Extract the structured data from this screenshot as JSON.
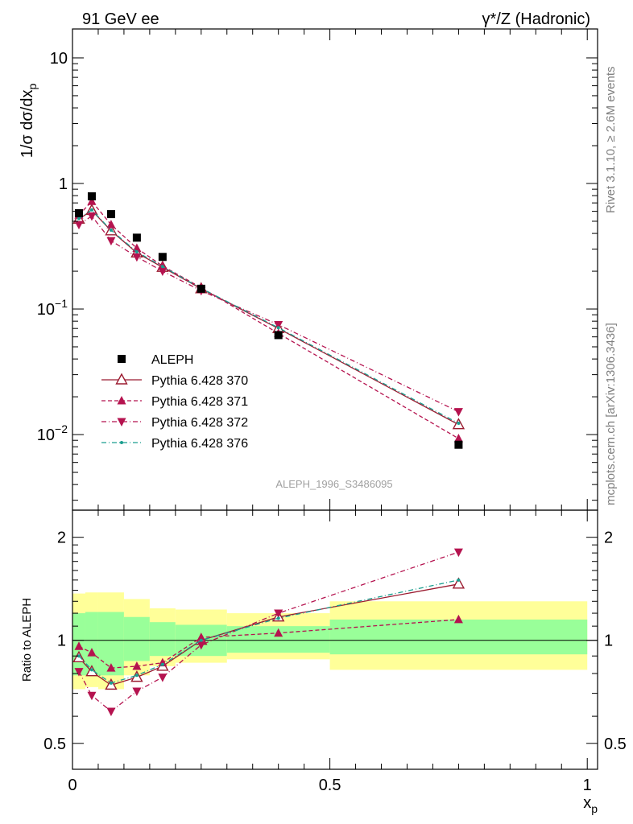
{
  "header": {
    "left_label": "91 GeV ee",
    "right_label": "γ*/Z (Hadronic)"
  },
  "side_labels": {
    "rivet": "Rivet 3.1.10, ≥ 2.6M events",
    "mcplots": "mcplots.cern.ch [arXiv:1306.3436]"
  },
  "watermark": "ALEPH_1996_S3486095",
  "chart_data": [
    {
      "type": "line",
      "panel": "main",
      "ylabel": "1/σ dσ/dx_p",
      "yscale": "log",
      "ylim": [
        0.0025,
        17
      ],
      "xlim": [
        0,
        1.02
      ],
      "yticks": [
        {
          "value": 10,
          "label": "10"
        },
        {
          "value": 1,
          "label": "1"
        },
        {
          "value": 0.1,
          "label": "10^-1"
        },
        {
          "value": 0.01,
          "label": "10^-2"
        }
      ],
      "legend_position": "middle-left",
      "series": [
        {
          "name": "ALEPH",
          "color": "#000000",
          "marker": "square",
          "line": "none",
          "x": [
            0.0125,
            0.0375,
            0.075,
            0.125,
            0.175,
            0.25,
            0.4,
            0.75
          ],
          "y": [
            0.58,
            0.79,
            0.57,
            0.37,
            0.26,
            0.145,
            0.062,
            0.0083
          ]
        },
        {
          "name": "Pythia 6.428 370",
          "color": "#9b1b30",
          "marker": "triangle-up-open",
          "line": "solid",
          "x": [
            0.0125,
            0.0375,
            0.075,
            0.125,
            0.175,
            0.25,
            0.4,
            0.75
          ],
          "y": [
            0.52,
            0.61,
            0.42,
            0.28,
            0.215,
            0.145,
            0.07,
            0.012
          ]
        },
        {
          "name": "Pythia 6.428 371",
          "color": "#b5134f",
          "marker": "triangle-up-filled",
          "line": "dashed",
          "x": [
            0.0125,
            0.0375,
            0.075,
            0.125,
            0.175,
            0.25,
            0.4,
            0.75
          ],
          "y": [
            0.56,
            0.72,
            0.47,
            0.305,
            0.22,
            0.148,
            0.064,
            0.0093
          ]
        },
        {
          "name": "Pythia 6.428 372",
          "color": "#b5134f",
          "marker": "triangle-down-filled",
          "line": "dashdot",
          "x": [
            0.0125,
            0.0375,
            0.075,
            0.125,
            0.175,
            0.25,
            0.4,
            0.75
          ],
          "y": [
            0.47,
            0.55,
            0.35,
            0.26,
            0.2,
            0.14,
            0.075,
            0.0152
          ]
        },
        {
          "name": "Pythia 6.428 376",
          "color": "#1a9e8f",
          "marker": "dot",
          "line": "dashdot",
          "x": [
            0.0125,
            0.0375,
            0.075,
            0.125,
            0.175,
            0.25,
            0.4,
            0.75
          ],
          "y": [
            0.525,
            0.615,
            0.425,
            0.285,
            0.218,
            0.146,
            0.071,
            0.0123
          ]
        }
      ]
    },
    {
      "type": "line",
      "panel": "ratio",
      "ylabel": "Ratio to ALEPH",
      "xlabel": "x_p",
      "yscale": "log",
      "ylim": [
        0.42,
        2.4
      ],
      "xlim": [
        0,
        1.02
      ],
      "yticks": [
        {
          "value": 2,
          "label": "2"
        },
        {
          "value": 1,
          "label": "1"
        },
        {
          "value": 0.5,
          "label": "0.5"
        }
      ],
      "xticks": [
        {
          "value": 0,
          "label": "0"
        },
        {
          "value": 0.5,
          "label": "0.5"
        },
        {
          "value": 1,
          "label": "1"
        }
      ],
      "bands": {
        "edges": [
          0,
          0.025,
          0.05,
          0.1,
          0.15,
          0.2,
          0.3,
          0.5,
          1.0
        ],
        "stat_lo": [
          0.79,
          0.79,
          0.79,
          0.87,
          0.9,
          0.9,
          0.92,
          0.91
        ],
        "stat_hi": [
          1.2,
          1.21,
          1.21,
          1.17,
          1.13,
          1.11,
          1.1,
          1.15
        ],
        "total_lo": [
          0.72,
          0.73,
          0.72,
          0.79,
          0.84,
          0.86,
          0.88,
          0.82
        ],
        "total_hi": [
          1.37,
          1.38,
          1.38,
          1.32,
          1.24,
          1.23,
          1.2,
          1.3
        ],
        "stat_color": "#99ff99",
        "total_color": "#ffff99"
      },
      "series": [
        {
          "name": "Pythia 6.428 370",
          "color": "#9b1b30",
          "marker": "triangle-up-open",
          "line": "solid",
          "x": [
            0.0125,
            0.0375,
            0.075,
            0.125,
            0.175,
            0.25,
            0.4,
            0.75
          ],
          "y": [
            0.89,
            0.81,
            0.74,
            0.78,
            0.84,
            1.0,
            1.17,
            1.46
          ]
        },
        {
          "name": "Pythia 6.428 371",
          "color": "#b5134f",
          "marker": "triangle-up-filled",
          "line": "dashed",
          "x": [
            0.0125,
            0.0375,
            0.075,
            0.125,
            0.175,
            0.25,
            0.4,
            0.75
          ],
          "y": [
            0.96,
            0.92,
            0.83,
            0.84,
            0.86,
            1.02,
            1.05,
            1.15
          ]
        },
        {
          "name": "Pythia 6.428 372",
          "color": "#b5134f",
          "marker": "triangle-down-filled",
          "line": "dashdot",
          "x": [
            0.0125,
            0.0375,
            0.075,
            0.125,
            0.175,
            0.25,
            0.4,
            0.75
          ],
          "y": [
            0.81,
            0.69,
            0.62,
            0.71,
            0.78,
            0.97,
            1.2,
            1.81
          ]
        },
        {
          "name": "Pythia 6.428 376",
          "color": "#1a9e8f",
          "marker": "dot",
          "line": "dashdot",
          "x": [
            0.0125,
            0.0375,
            0.075,
            0.125,
            0.175,
            0.25,
            0.4,
            0.75
          ],
          "y": [
            0.9,
            0.82,
            0.75,
            0.79,
            0.85,
            1.0,
            1.16,
            1.5
          ]
        }
      ]
    }
  ]
}
